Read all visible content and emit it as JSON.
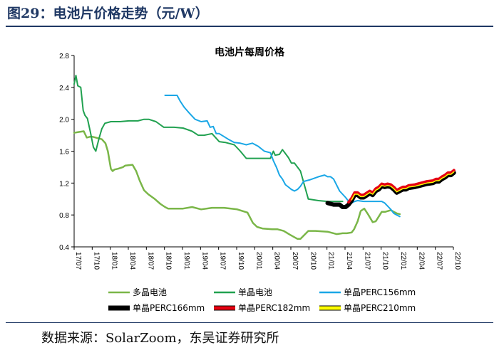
{
  "figure": {
    "title": "图29：电池片价格走势（元/W）",
    "source": "数据来源：SolarZoom，东吴证券研究所"
  },
  "chart_data": {
    "type": "line",
    "title": "电池片每周价格",
    "xlabel": "",
    "ylabel": "",
    "ylim": [
      0.4,
      2.8
    ],
    "yticks": [
      0.4,
      0.8,
      1.2,
      1.6,
      2.0,
      2.4,
      2.8
    ],
    "ytick_labels": [
      "0.4",
      "0.8",
      "1.2",
      "1.6",
      "2.0",
      "2.4",
      "2.8"
    ],
    "xlim": [
      0,
      63
    ],
    "xticks": [
      0,
      3,
      6,
      9,
      12,
      15,
      18,
      21,
      24,
      27,
      30,
      33,
      36,
      39,
      42,
      45,
      48,
      51,
      54,
      57,
      60,
      63
    ],
    "xtick_labels": [
      "17/07",
      "17/10",
      "18/01",
      "18/04",
      "18/07",
      "18/10",
      "19/01",
      "19/04",
      "19/07",
      "19/10",
      "20/01",
      "20/04",
      "20/07",
      "20/10",
      "21/01",
      "21/04",
      "21/07",
      "21/10",
      "22/01",
      "22/04",
      "22/07",
      "22/10"
    ],
    "x_unit": "months since 2017-07",
    "grid": false,
    "legend_position": "bottom",
    "series": [
      {
        "name": "多晶电池",
        "color": "#7ab648",
        "x": [
          0,
          0.7,
          1.6,
          2.1,
          2.6,
          3.1,
          3.6,
          4.6,
          5.2,
          5.6,
          6.1,
          6.4,
          6.7,
          7.3,
          8.1,
          8.5,
          9.7,
          10.3,
          10.9,
          11.6,
          12.3,
          13.4,
          14.3,
          15.1,
          15.6,
          18.1,
          19.6,
          21.1,
          22.9,
          24.9,
          27.1,
          28.8,
          29.7,
          30.4,
          31.3,
          32.9,
          33.8,
          34.8,
          35.9,
          37.1,
          37.6,
          38.9,
          40.1,
          42.1,
          43.6,
          44.6,
          45.3,
          46.1,
          46.5,
          47.1,
          47.6,
          48.2,
          48.9,
          49.6,
          50.1,
          50.6,
          51.1,
          51.7,
          52.6,
          53.1,
          53.6,
          54.1
        ],
        "y": [
          1.83,
          1.84,
          1.85,
          1.77,
          1.78,
          1.78,
          1.77,
          1.75,
          1.7,
          1.6,
          1.38,
          1.35,
          1.37,
          1.38,
          1.4,
          1.42,
          1.43,
          1.35,
          1.23,
          1.11,
          1.06,
          1.0,
          0.94,
          0.9,
          0.88,
          0.88,
          0.9,
          0.87,
          0.89,
          0.89,
          0.87,
          0.83,
          0.7,
          0.65,
          0.63,
          0.62,
          0.62,
          0.6,
          0.55,
          0.5,
          0.5,
          0.6,
          0.6,
          0.59,
          0.56,
          0.57,
          0.57,
          0.58,
          0.62,
          0.72,
          0.85,
          0.88,
          0.8,
          0.71,
          0.72,
          0.78,
          0.84,
          0.84,
          0.86,
          0.84,
          0.82,
          0.81
        ]
      },
      {
        "name": "单晶电池",
        "color": "#21a150",
        "x": [
          0,
          0.3,
          0.6,
          1.1,
          1.5,
          1.8,
          2.2,
          2.7,
          3.2,
          3.6,
          4.1,
          4.6,
          5.1,
          6.1,
          7.6,
          9.1,
          10.6,
          11.6,
          12.4,
          13.6,
          14.9,
          16.6,
          18.1,
          19.6,
          20.6,
          21.6,
          22.9,
          24.1,
          25.1,
          26.6,
          27.6,
          28.6,
          29.6,
          30.6,
          31.6,
          32.6,
          33.1,
          33.4,
          34.1,
          34.6,
          35.6,
          36.1,
          36.6,
          37.6,
          38.9,
          40.6,
          42.1,
          43.6,
          44.6
        ],
        "y": [
          2.44,
          2.55,
          2.42,
          2.4,
          2.11,
          2.05,
          2.01,
          1.84,
          1.65,
          1.6,
          1.75,
          1.88,
          1.95,
          1.97,
          1.97,
          1.98,
          1.98,
          2.0,
          2.0,
          1.97,
          1.9,
          1.9,
          1.89,
          1.85,
          1.8,
          1.8,
          1.82,
          1.72,
          1.71,
          1.68,
          1.6,
          1.51,
          1.51,
          1.51,
          1.51,
          1.51,
          1.6,
          1.55,
          1.56,
          1.62,
          1.52,
          1.45,
          1.45,
          1.35,
          1.0,
          0.98,
          0.97,
          0.97,
          0.97
        ]
      },
      {
        "name": "单晶PERC156mm",
        "color": "#1aa7e6",
        "x": [
          15.1,
          17.1,
          17.6,
          18.3,
          19.1,
          20.1,
          21.1,
          22.1,
          22.6,
          23.1,
          23.6,
          24.1,
          25.6,
          26.6,
          27.6,
          28.6,
          29.6,
          30.6,
          31.6,
          32.6,
          33.1,
          33.6,
          34.1,
          34.6,
          35.1,
          35.6,
          36.1,
          36.6,
          37.1,
          37.6,
          38.1,
          39.1,
          40.6,
          41.6,
          42.1,
          42.6,
          43.1,
          44.1,
          45.1,
          45.6,
          46.1,
          46.6,
          47.1,
          48.1,
          49.6,
          51.1,
          51.6,
          52.6,
          53.1,
          53.6,
          54.1
        ],
        "y": [
          2.3,
          2.3,
          2.23,
          2.15,
          2.08,
          2.0,
          1.97,
          1.98,
          1.9,
          1.91,
          1.82,
          1.82,
          1.75,
          1.71,
          1.7,
          1.68,
          1.7,
          1.66,
          1.6,
          1.58,
          1.48,
          1.4,
          1.3,
          1.25,
          1.18,
          1.15,
          1.12,
          1.1,
          1.12,
          1.16,
          1.22,
          1.24,
          1.28,
          1.3,
          1.28,
          1.28,
          1.25,
          1.1,
          1.02,
          0.97,
          0.95,
          0.97,
          0.98,
          0.97,
          0.97,
          0.97,
          0.95,
          0.87,
          0.82,
          0.8,
          0.78
        ]
      },
      {
        "name": "单晶PERC166mm",
        "color": "#000000",
        "x": [
          42.1,
          43.1,
          44.1,
          44.6,
          45.1,
          45.6,
          46.1,
          46.6,
          47.1,
          47.6,
          48.1,
          49.1,
          49.6,
          50.1,
          50.6,
          51.1,
          51.6,
          52.1,
          52.6,
          53.1,
          53.6,
          54.1,
          54.6,
          55.1,
          55.6,
          56.6,
          57.6,
          58.6,
          59.6,
          60.1,
          60.6,
          61.1,
          61.6,
          62.1,
          62.6,
          63.1
        ],
        "y": [
          0.95,
          0.93,
          0.93,
          0.9,
          0.9,
          0.93,
          0.98,
          1.05,
          1.05,
          1.02,
          1.02,
          1.07,
          1.05,
          1.1,
          1.12,
          1.16,
          1.15,
          1.16,
          1.15,
          1.12,
          1.08,
          1.1,
          1.12,
          1.12,
          1.14,
          1.15,
          1.17,
          1.19,
          1.2,
          1.22,
          1.22,
          1.25,
          1.27,
          1.3,
          1.3,
          1.33
        ]
      },
      {
        "name": "单晶PERC182mm",
        "color": "#e60012",
        "x": [
          45.6,
          46.1,
          46.6,
          47.1,
          47.6,
          48.1,
          49.1,
          49.6,
          50.1,
          50.6,
          51.1,
          51.6,
          52.1,
          52.6,
          53.1,
          53.6,
          54.1,
          54.6,
          55.1,
          55.6,
          56.6,
          57.6,
          58.6,
          59.6,
          60.1,
          60.6,
          61.1,
          61.6,
          62.1,
          62.6,
          63.1
        ],
        "y": [
          0.96,
          1.01,
          1.08,
          1.08,
          1.05,
          1.05,
          1.1,
          1.08,
          1.13,
          1.15,
          1.19,
          1.18,
          1.19,
          1.18,
          1.15,
          1.11,
          1.13,
          1.15,
          1.15,
          1.17,
          1.18,
          1.2,
          1.22,
          1.23,
          1.25,
          1.25,
          1.28,
          1.3,
          1.33,
          1.33,
          1.36
        ]
      },
      {
        "name": "单晶PERC210mm",
        "color": "#ffff00",
        "x": [
          46.1,
          46.6,
          47.1,
          47.6,
          48.1,
          49.1,
          49.6,
          50.1,
          50.6,
          51.1,
          51.6,
          52.1,
          52.6,
          53.1,
          53.6,
          54.1,
          54.6,
          55.1,
          55.6,
          56.6,
          57.6,
          58.6,
          59.6,
          60.1,
          60.6,
          61.1,
          61.6,
          62.1,
          62.6,
          63.1
        ],
        "y": [
          0.99,
          1.06,
          1.06,
          1.03,
          1.03,
          1.08,
          1.06,
          1.11,
          1.13,
          1.17,
          1.16,
          1.17,
          1.16,
          1.13,
          1.09,
          1.11,
          1.13,
          1.13,
          1.15,
          1.16,
          1.18,
          1.2,
          1.21,
          1.23,
          1.23,
          1.26,
          1.28,
          1.31,
          1.31,
          1.34
        ]
      }
    ]
  }
}
